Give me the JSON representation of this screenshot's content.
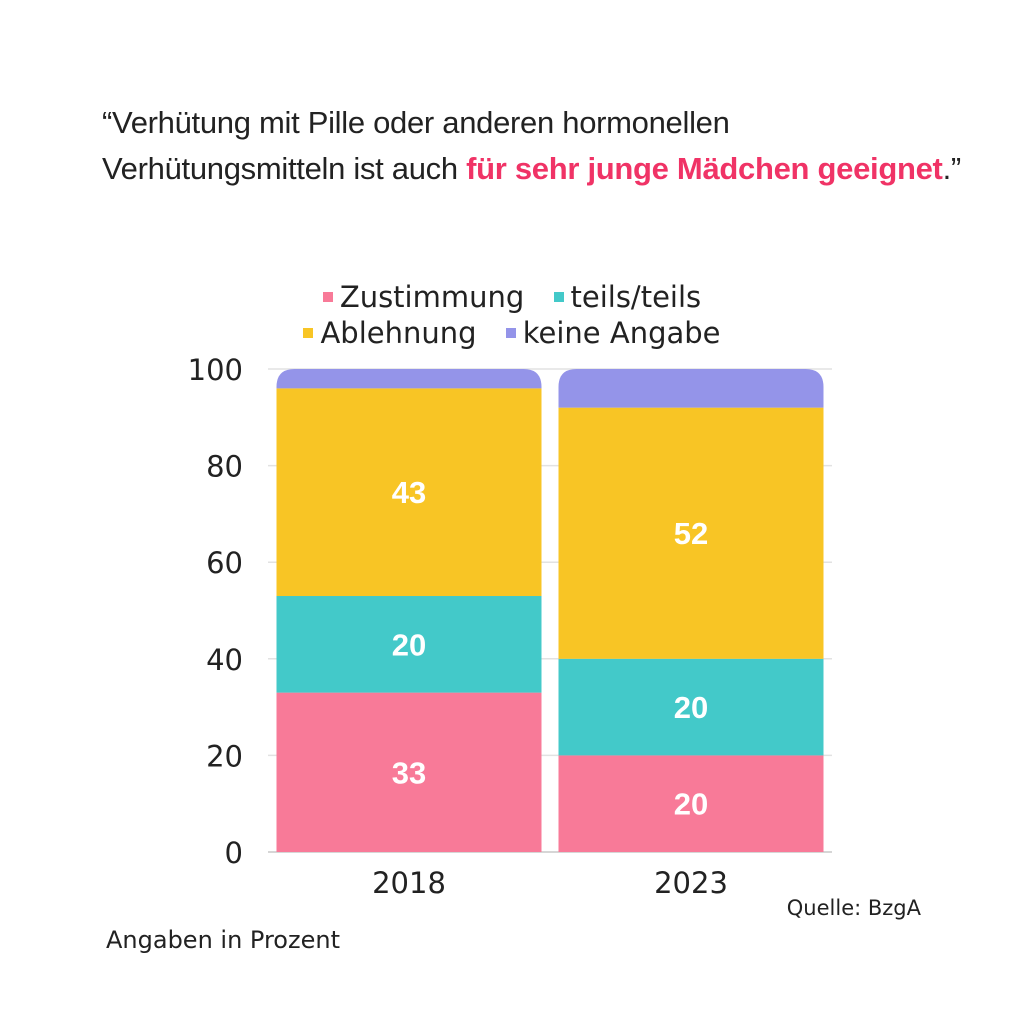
{
  "title": {
    "part1": "“Verhütung mit Pille oder anderen hormonellen Verhütungsmitteln ist auch ",
    "highlight": "für sehr junge Mädchen geeignet",
    "part2": ".”"
  },
  "colors": {
    "highlight": "#F03366",
    "Zustimmung": "#F87A98",
    "teils/teils": "#43C9C9",
    "Ablehnung": "#F8C525",
    "keine Angabe": "#9494E9"
  },
  "footer": {
    "unit_note": "Angaben in Prozent",
    "source": "Quelle: BzgA"
  },
  "chart_data": {
    "type": "bar",
    "stacked": true,
    "categories": [
      "2018",
      "2023"
    ],
    "series": [
      {
        "name": "Zustimmung",
        "values": [
          33,
          20
        ],
        "color": "#F87A98"
      },
      {
        "name": "teils/teils",
        "values": [
          20,
          20
        ],
        "color": "#43C9C9"
      },
      {
        "name": "Ablehnung",
        "values": [
          43,
          52
        ],
        "color": "#F8C525"
      },
      {
        "name": "keine Angabe",
        "values": [
          4,
          8
        ],
        "color": "#9494E9"
      }
    ],
    "data_labels_shown_for": [
      "Zustimmung",
      "teils/teils",
      "Ablehnung"
    ],
    "legend": [
      "Zustimmung",
      "teils/teils",
      "Ablehnung",
      "keine Angabe"
    ],
    "legend_position": "top",
    "yticks": [
      "0",
      "20",
      "40",
      "60",
      "80",
      "100"
    ],
    "ylim": [
      0,
      100
    ],
    "grid": true,
    "xlabel": "",
    "ylabel": ""
  }
}
